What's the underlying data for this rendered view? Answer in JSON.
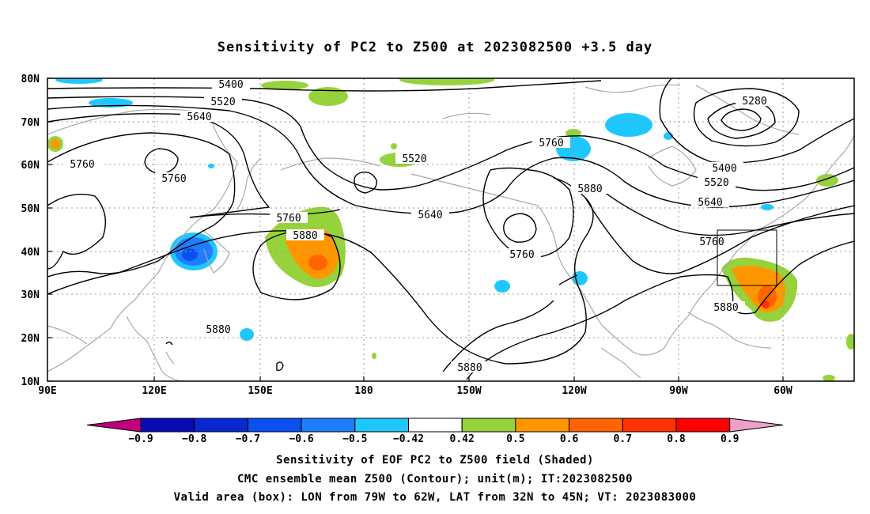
{
  "title": "Sensitivity of PC2 to Z500 at 2023082500 +3.5 day",
  "axes": {
    "lat_labels": [
      "80N",
      "70N",
      "60N",
      "50N",
      "40N",
      "30N",
      "20N",
      "10N"
    ],
    "lon_labels": [
      "90E",
      "120E",
      "150E",
      "180",
      "150W",
      "120W",
      "90W",
      "60W"
    ]
  },
  "colorbar": {
    "labels": [
      "-0.9",
      "-0.8",
      "-0.7",
      "-0.6",
      "-0.5",
      "-0.42",
      "0.42",
      "0.5",
      "0.6",
      "0.7",
      "0.8",
      "0.9"
    ],
    "colors": [
      "#c0007f",
      "#0a0ab4",
      "#0a28d2",
      "#0a50f0",
      "#1e7dff",
      "#1ec8ff",
      "#ffffff",
      "#96d23c",
      "#ff9600",
      "#ff6400",
      "#ff3200",
      "#ff0000",
      "#f0a0c8"
    ]
  },
  "contour_labels": [
    "5400",
    "5520",
    "5640",
    "5760",
    "5760",
    "5520",
    "5640",
    "5760",
    "5880",
    "5760",
    "5760",
    "5880",
    "5280",
    "5400",
    "5520",
    "5640",
    "5760",
    "5880",
    "5880",
    "5880"
  ],
  "footer": {
    "line1": "Sensitivity of EOF PC2 to Z500 field (Shaded)",
    "line2": "CMC ensemble mean Z500 (Contour); unit(m); IT:2023082500",
    "line3": "Valid area (box): LON from 79W to 62W, LAT from 32N to 45N; VT: 2023083000"
  }
}
